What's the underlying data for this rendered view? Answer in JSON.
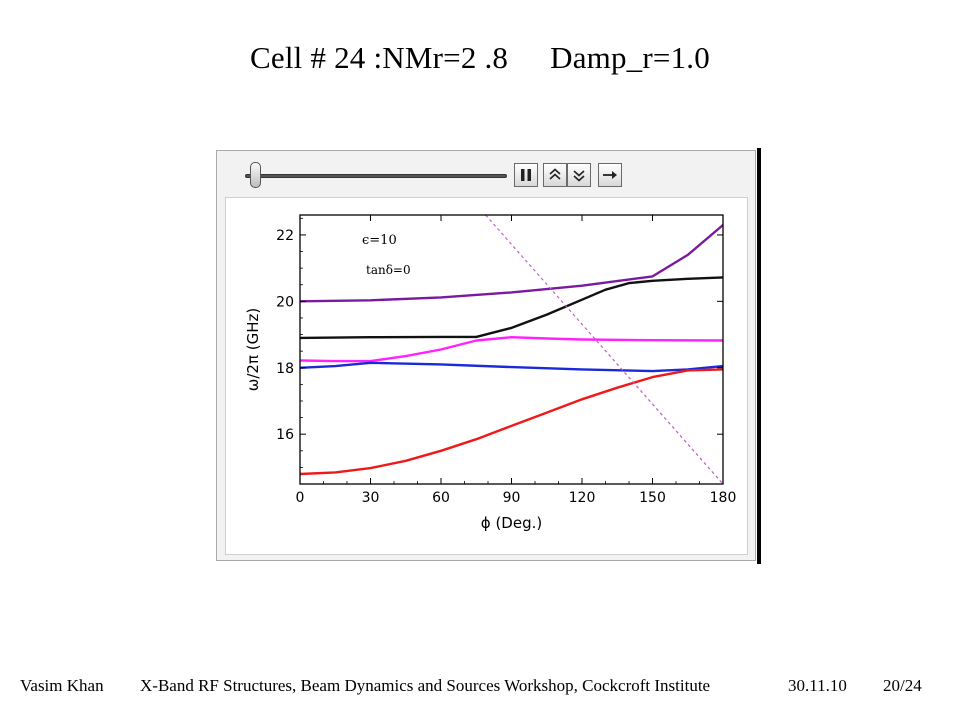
{
  "slide": {
    "title_main": "Cell # 24 :NMr=2 .8",
    "title_param": "Damp_r=1.0"
  },
  "controls": {
    "slider_value": 0.02,
    "icons": [
      "pause-icon",
      "step-up-icon",
      "step-down-icon",
      "step-forward-icon"
    ]
  },
  "footer": {
    "author": "Vasim Khan",
    "event": "X-Band RF Structures, Beam Dynamics and Sources Workshop, Cockcroft Institute",
    "date": "30.11.10",
    "page": "20/24"
  },
  "chart_data": {
    "type": "line",
    "xlabel": "ϕ (Deg.)",
    "ylabel": "ω/2π (GHz)",
    "xlim": [
      0,
      180
    ],
    "ylim": [
      14.5,
      22.6
    ],
    "xticks": [
      0,
      30,
      60,
      90,
      120,
      150,
      180
    ],
    "yticks": [
      16,
      18,
      20,
      22
    ],
    "annotations": [
      "ϵ=10",
      "tanδ=0"
    ],
    "grid": false,
    "series": [
      {
        "color": "#7a1aa0",
        "dash": false,
        "x": [
          0,
          30,
          60,
          90,
          120,
          150,
          165,
          180
        ],
        "y": [
          20.0,
          20.03,
          20.12,
          20.27,
          20.47,
          20.75,
          21.4,
          22.3
        ]
      },
      {
        "color": "#111111",
        "dash": false,
        "x": [
          0,
          30,
          60,
          75,
          90,
          105,
          120,
          130,
          140,
          150,
          165,
          180
        ],
        "y": [
          18.9,
          18.92,
          18.93,
          18.93,
          19.2,
          19.6,
          20.05,
          20.35,
          20.55,
          20.62,
          20.68,
          20.72
        ]
      },
      {
        "color": "#ff22ff",
        "dash": false,
        "x": [
          0,
          15,
          30,
          45,
          60,
          75,
          90,
          105,
          120,
          150,
          180
        ],
        "y": [
          18.22,
          18.2,
          18.2,
          18.35,
          18.55,
          18.82,
          18.92,
          18.88,
          18.85,
          18.83,
          18.82
        ]
      },
      {
        "color": "#1a2ad8",
        "dash": false,
        "x": [
          0,
          15,
          30,
          60,
          90,
          120,
          150,
          165,
          180
        ],
        "y": [
          18.0,
          18.05,
          18.15,
          18.1,
          18.02,
          17.95,
          17.9,
          17.95,
          18.05
        ]
      },
      {
        "color": "#ee1a1a",
        "dash": false,
        "x": [
          0,
          15,
          30,
          45,
          60,
          75,
          90,
          105,
          120,
          135,
          150,
          165,
          180
        ],
        "y": [
          14.8,
          14.85,
          14.98,
          15.2,
          15.5,
          15.85,
          16.25,
          16.65,
          17.05,
          17.4,
          17.72,
          17.92,
          17.95
        ]
      },
      {
        "color": "#c060c0",
        "dash": true,
        "x": [
          79,
          180
        ],
        "y": [
          22.6,
          14.5
        ]
      }
    ]
  }
}
